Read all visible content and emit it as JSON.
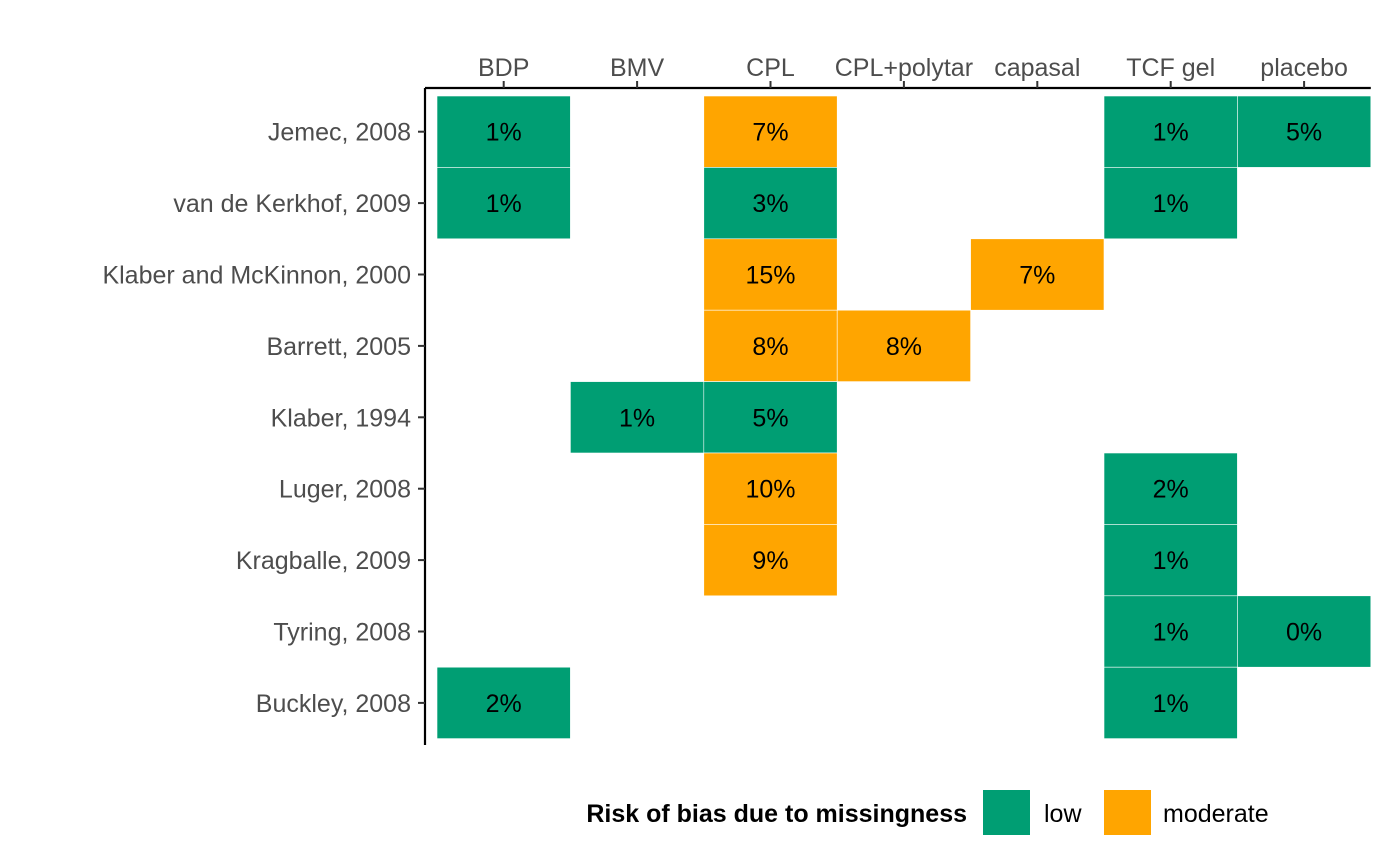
{
  "chart_data": {
    "type": "heatmap",
    "title": "",
    "xlabel": "",
    "ylabel": "",
    "x_axis_position": "top",
    "grid": false,
    "columns": [
      "BDP",
      "BMV",
      "CPL",
      "CPL+polytar",
      "capasal",
      "TCF gel",
      "placebo"
    ],
    "rows": [
      "Jemec, 2008",
      "van de Kerkhof, 2009",
      "Klaber and McKinnon, 2000",
      "Barrett, 2005",
      "Klaber, 1994",
      "Luger, 2008",
      "Kragballe, 2009",
      "Tyring, 2008",
      "Buckley, 2008"
    ],
    "cells": [
      {
        "row": "Jemec, 2008",
        "column": "BDP",
        "label": "1%",
        "risk": "low"
      },
      {
        "row": "Jemec, 2008",
        "column": "CPL",
        "label": "7%",
        "risk": "moderate"
      },
      {
        "row": "Jemec, 2008",
        "column": "TCF gel",
        "label": "1%",
        "risk": "low"
      },
      {
        "row": "Jemec, 2008",
        "column": "placebo",
        "label": "5%",
        "risk": "low"
      },
      {
        "row": "van de Kerkhof, 2009",
        "column": "BDP",
        "label": "1%",
        "risk": "low"
      },
      {
        "row": "van de Kerkhof, 2009",
        "column": "CPL",
        "label": "3%",
        "risk": "low"
      },
      {
        "row": "van de Kerkhof, 2009",
        "column": "TCF gel",
        "label": "1%",
        "risk": "low"
      },
      {
        "row": "Klaber and McKinnon, 2000",
        "column": "CPL",
        "label": "15%",
        "risk": "moderate"
      },
      {
        "row": "Klaber and McKinnon, 2000",
        "column": "capasal",
        "label": "7%",
        "risk": "moderate"
      },
      {
        "row": "Barrett, 2005",
        "column": "CPL",
        "label": "8%",
        "risk": "moderate"
      },
      {
        "row": "Barrett, 2005",
        "column": "CPL+polytar",
        "label": "8%",
        "risk": "moderate"
      },
      {
        "row": "Klaber, 1994",
        "column": "BMV",
        "label": "1%",
        "risk": "low"
      },
      {
        "row": "Klaber, 1994",
        "column": "CPL",
        "label": "5%",
        "risk": "low"
      },
      {
        "row": "Luger, 2008",
        "column": "CPL",
        "label": "10%",
        "risk": "moderate"
      },
      {
        "row": "Luger, 2008",
        "column": "TCF gel",
        "label": "2%",
        "risk": "low"
      },
      {
        "row": "Kragballe, 2009",
        "column": "CPL",
        "label": "9%",
        "risk": "moderate"
      },
      {
        "row": "Kragballe, 2009",
        "column": "TCF gel",
        "label": "1%",
        "risk": "low"
      },
      {
        "row": "Tyring, 2008",
        "column": "TCF gel",
        "label": "1%",
        "risk": "low"
      },
      {
        "row": "Tyring, 2008",
        "column": "placebo",
        "label": "0%",
        "risk": "low"
      },
      {
        "row": "Buckley, 2008",
        "column": "BDP",
        "label": "2%",
        "risk": "low"
      },
      {
        "row": "Buckley, 2008",
        "column": "TCF gel",
        "label": "1%",
        "risk": "low"
      }
    ],
    "legend": {
      "title": "Risk of bias due to missingness",
      "position": "bottom",
      "items": [
        {
          "key": "low",
          "label": "low",
          "color": "#009E73"
        },
        {
          "key": "moderate",
          "label": "moderate",
          "color": "#FFA500"
        }
      ]
    }
  }
}
